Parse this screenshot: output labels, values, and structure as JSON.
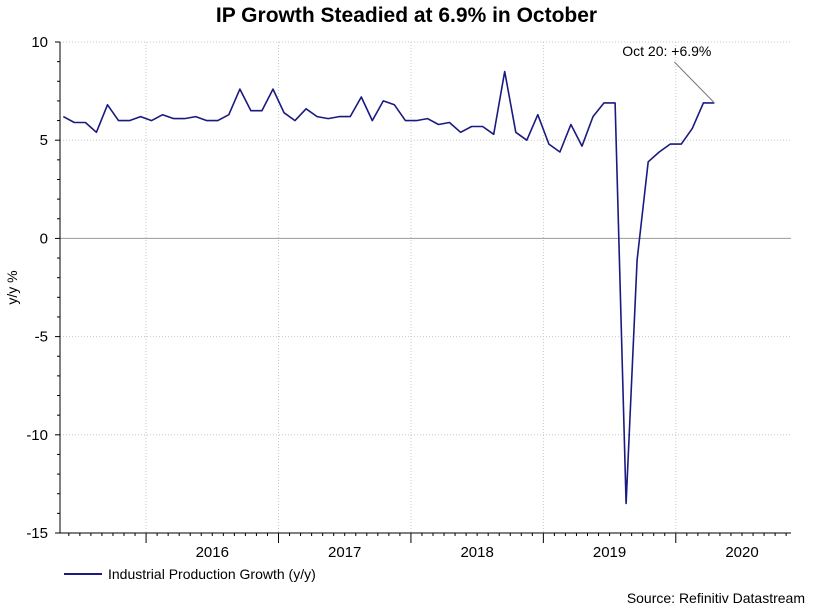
{
  "chart_data": {
    "type": "line",
    "title": "IP Growth Steadied at 6.9% in October",
    "ylabel": "y/y %",
    "xlabel": "",
    "ylim": [
      -15,
      10
    ],
    "yticks": [
      10,
      5,
      0,
      -5,
      -10,
      -15
    ],
    "ytick_labels": [
      "10",
      "5",
      "0",
      "-5",
      "-10",
      "-15"
    ],
    "xlim": [
      2015.35,
      2020.87
    ],
    "year_labels": [
      {
        "label": "2016",
        "center": 2016.5
      },
      {
        "label": "2017",
        "center": 2017.5
      },
      {
        "label": "2018",
        "center": 2018.5
      },
      {
        "label": "2019",
        "center": 2019.5
      },
      {
        "label": "2020",
        "center": 2020.5
      }
    ],
    "year_boundaries": [
      2016,
      2017,
      2018,
      2019,
      2020
    ],
    "series": [
      {
        "name": "Industrial Production Growth (y/y)",
        "color": "#1a1a80",
        "start": 2015.375,
        "step": 0.08333,
        "values": [
          6.2,
          5.9,
          5.9,
          5.4,
          6.8,
          6.0,
          6.0,
          6.2,
          6.0,
          6.3,
          6.1,
          6.1,
          6.2,
          6.0,
          6.0,
          6.3,
          7.6,
          6.5,
          6.5,
          7.6,
          6.4,
          6.0,
          6.6,
          6.2,
          6.1,
          6.2,
          6.2,
          7.2,
          6.0,
          7.0,
          6.8,
          6.0,
          6.0,
          6.1,
          5.8,
          5.9,
          5.4,
          5.7,
          5.7,
          5.3,
          8.5,
          5.4,
          5.0,
          6.3,
          4.8,
          4.4,
          5.8,
          4.7,
          6.2,
          6.9,
          6.9,
          -13.5,
          -1.1,
          3.9,
          4.4,
          4.8,
          4.8,
          5.6,
          6.9,
          6.9
        ]
      }
    ],
    "annotation": {
      "text": "Oct 20: +6.9%",
      "value": 6.9
    }
  },
  "legend": {
    "label": "Industrial Production Growth (y/y)"
  },
  "source": "Source: Refinitiv Datastream",
  "colors": {
    "line": "#1a1a80",
    "grid": "#c8c8c8",
    "zero_line": "#999999"
  }
}
